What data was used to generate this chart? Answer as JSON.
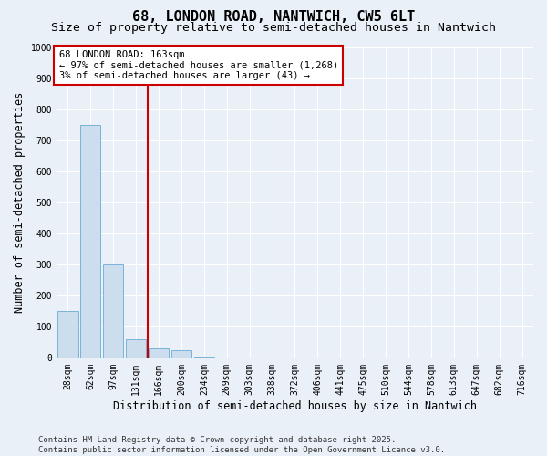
{
  "title_line1": "68, LONDON ROAD, NANTWICH, CW5 6LT",
  "title_line2": "Size of property relative to semi-detached houses in Nantwich",
  "xlabel": "Distribution of semi-detached houses by size in Nantwich",
  "ylabel": "Number of semi-detached properties",
  "categories": [
    "28sqm",
    "62sqm",
    "97sqm",
    "131sqm",
    "166sqm",
    "200sqm",
    "234sqm",
    "269sqm",
    "303sqm",
    "338sqm",
    "372sqm",
    "406sqm",
    "441sqm",
    "475sqm",
    "510sqm",
    "544sqm",
    "578sqm",
    "613sqm",
    "647sqm",
    "682sqm",
    "716sqm"
  ],
  "values": [
    150,
    750,
    300,
    60,
    30,
    25,
    5,
    0,
    0,
    0,
    0,
    0,
    0,
    0,
    0,
    0,
    0,
    0,
    0,
    0,
    0
  ],
  "bar_color": "#ccdded",
  "bar_edge_color": "#6aaad4",
  "red_line_x": 3.5,
  "red_line_color": "#cc0000",
  "annotation_title": "68 LONDON ROAD: 163sqm",
  "annotation_line1": "← 97% of semi-detached houses are smaller (1,268)",
  "annotation_line2": "3% of semi-detached houses are larger (43) →",
  "annotation_box_color": "#cc0000",
  "ylim": [
    0,
    1000
  ],
  "yticks": [
    0,
    100,
    200,
    300,
    400,
    500,
    600,
    700,
    800,
    900,
    1000
  ],
  "footnote": "Contains HM Land Registry data © Crown copyright and database right 2025.\nContains public sector information licensed under the Open Government Licence v3.0.",
  "bg_color": "#eaf0f7",
  "plot_bg_color": "#eaf0f7",
  "grid_color": "#ffffff",
  "title_fontsize": 11,
  "subtitle_fontsize": 9.5,
  "label_fontsize": 8.5,
  "tick_fontsize": 7,
  "footnote_fontsize": 6.5,
  "annotation_fontsize": 7.5
}
